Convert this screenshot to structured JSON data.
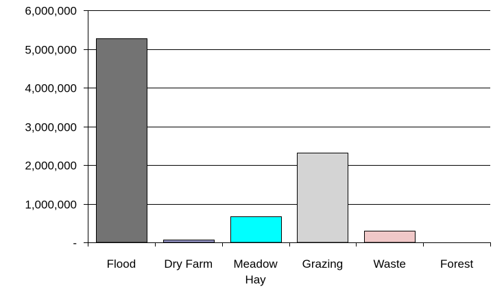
{
  "chart_data": {
    "type": "bar",
    "categories": [
      "Flood",
      "Dry Farm",
      "Meadow Hay",
      "Grazing",
      "Waste",
      "Forest"
    ],
    "category_label_lines": [
      [
        "Flood"
      ],
      [
        "Dry Farm"
      ],
      [
        "Meadow",
        "Hay"
      ],
      [
        "Grazing"
      ],
      [
        "Waste"
      ],
      [
        "Forest"
      ]
    ],
    "values": [
      5270000,
      75000,
      680000,
      2310000,
      300000,
      0
    ],
    "bar_colors": [
      "#737373",
      "#9999cc",
      "#00ffff",
      "#d4d4d4",
      "#f0c8c8",
      "#ffffff"
    ],
    "ylim": [
      0,
      6000000
    ],
    "yticks": [
      0,
      1000000,
      2000000,
      3000000,
      4000000,
      5000000,
      6000000
    ],
    "ytick_labels": [
      "-",
      "1,000,000",
      "2,000,000",
      "3,000,000",
      "4,000,000",
      "5,000,000",
      "6,000,000"
    ],
    "grid": true,
    "grid_color": "#000000",
    "title": "",
    "xlabel": "",
    "ylabel": ""
  }
}
